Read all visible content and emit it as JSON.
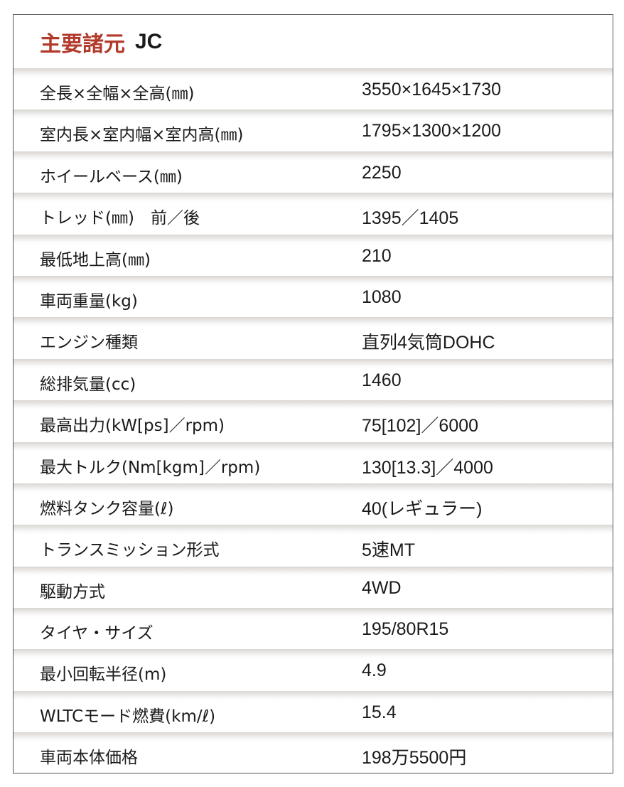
{
  "title": {
    "main": "主要諸元",
    "model": "JC"
  },
  "colors": {
    "title_red": "#b33a2b",
    "separator": "#d9d6d3"
  },
  "specs": [
    {
      "label": "全長×全幅×全高(㎜)",
      "value": "3550×1645×1730"
    },
    {
      "label": "室内長×室内幅×室内高(㎜)",
      "value": "1795×1300×1200"
    },
    {
      "label": "ホイールベース(㎜)",
      "value": "2250"
    },
    {
      "label": "トレッド(㎜)　前／後",
      "value": "1395／1405"
    },
    {
      "label": "最低地上高(㎜)",
      "value": "210"
    },
    {
      "label": "車両重量(kg)",
      "value": "1080"
    },
    {
      "label": "エンジン種類",
      "value": "直列4気筒DOHC"
    },
    {
      "label": "総排気量(cc)",
      "value": "1460"
    },
    {
      "label": "最高出力(kW[ps]／rpm)",
      "value": "75[102]／6000"
    },
    {
      "label": "最大トルク(Nm[kgm]／rpm)",
      "value": "130[13.3]／4000"
    },
    {
      "label": "燃料タンク容量(ℓ)",
      "value": "40(レギュラー)"
    },
    {
      "label": "トランスミッション形式",
      "value": "5速MT"
    },
    {
      "label": "駆動方式",
      "value": "4WD"
    },
    {
      "label": "タイヤ・サイズ",
      "value": "195/80R15"
    },
    {
      "label": "最小回転半径(m)",
      "value": "4.9"
    },
    {
      "label": "WLTCモード燃費(km/ℓ)",
      "value": "15.4"
    },
    {
      "label": "車両本体価格",
      "value": "198万5500円"
    }
  ]
}
